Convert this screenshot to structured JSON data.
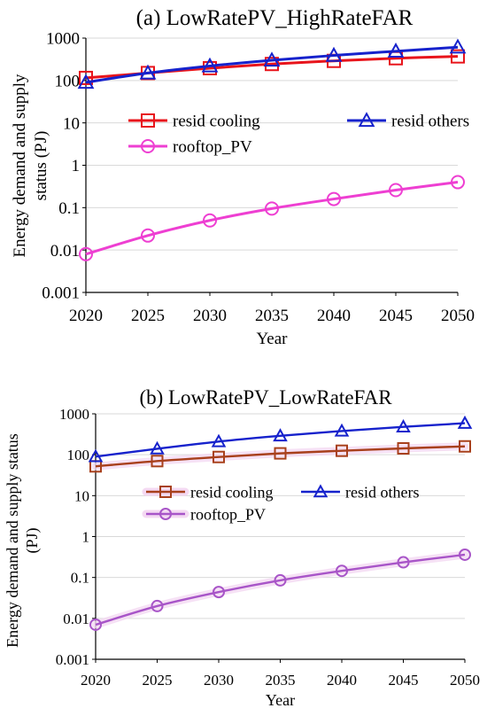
{
  "chart_data": [
    {
      "type": "line",
      "title": "(a) LowRatePV_HighRateFAR",
      "xlabel": "Year",
      "ylabel": "Energy demand and supply status (PJ)",
      "ylabel_lines": [
        "Energy demand and supply",
        "status (PJ)"
      ],
      "yscale": "log",
      "ylim": [
        0.001,
        1000
      ],
      "xlim": [
        2020,
        2050
      ],
      "x": [
        2020,
        2025,
        2030,
        2035,
        2040,
        2045,
        2050
      ],
      "x_tick_labels": [
        "2020",
        "2025",
        "2030",
        "2035",
        "2040",
        "2045",
        "2050"
      ],
      "y_tick_labels": [
        "0.001",
        "0.01",
        "0.1",
        "1",
        "10",
        "100",
        "1000"
      ],
      "y_tick_values": [
        0.001,
        0.01,
        0.1,
        1,
        10,
        100,
        1000
      ],
      "grid": true,
      "legend": "inside-upper",
      "series": [
        {
          "name": "resid cooling",
          "marker": "square",
          "color": "#e8141b",
          "values": [
            115,
            150,
            195,
            245,
            290,
            335,
            370
          ]
        },
        {
          "name": "resid others",
          "marker": "triangle",
          "color": "#1622cc",
          "values": [
            90,
            150,
            220,
            300,
            390,
            490,
            610
          ]
        },
        {
          "name": "rooftop_PV",
          "marker": "circle",
          "color": "#ee3fd2",
          "values": [
            0.008,
            0.022,
            0.05,
            0.095,
            0.16,
            0.26,
            0.4
          ]
        }
      ]
    },
    {
      "type": "line",
      "title": "(b) LowRatePV_LowRateFAR",
      "xlabel": "Year",
      "ylabel": "Energy demand and supply status (PJ)",
      "ylabel_lines": [
        "Energy demand and supply status",
        "(PJ)"
      ],
      "yscale": "log",
      "ylim": [
        0.001,
        1000
      ],
      "xlim": [
        2020,
        2050
      ],
      "x": [
        2020,
        2025,
        2030,
        2035,
        2040,
        2045,
        2050
      ],
      "x_tick_labels": [
        "2020",
        "2025",
        "2030",
        "2035",
        "2040",
        "2045",
        "2050"
      ],
      "y_tick_labels": [
        "0.001",
        "0.01",
        "0.1",
        "1",
        "10",
        "100",
        "1000"
      ],
      "y_tick_values": [
        0.001,
        0.01,
        0.1,
        1,
        10,
        100,
        1000
      ],
      "grid": true,
      "legend": "inside-upper",
      "series": [
        {
          "name": "resid cooling",
          "marker": "square",
          "color": "#a8401c",
          "values": [
            52,
            70,
            88,
            108,
            125,
            143,
            160
          ]
        },
        {
          "name": "resid others",
          "marker": "triangle",
          "color": "#1622cc",
          "values": [
            90,
            140,
            210,
            290,
            380,
            480,
            590
          ]
        },
        {
          "name": "rooftop_PV",
          "marker": "circle",
          "color": "#a855c8",
          "values": [
            0.007,
            0.02,
            0.044,
            0.085,
            0.145,
            0.235,
            0.36
          ]
        }
      ]
    }
  ]
}
